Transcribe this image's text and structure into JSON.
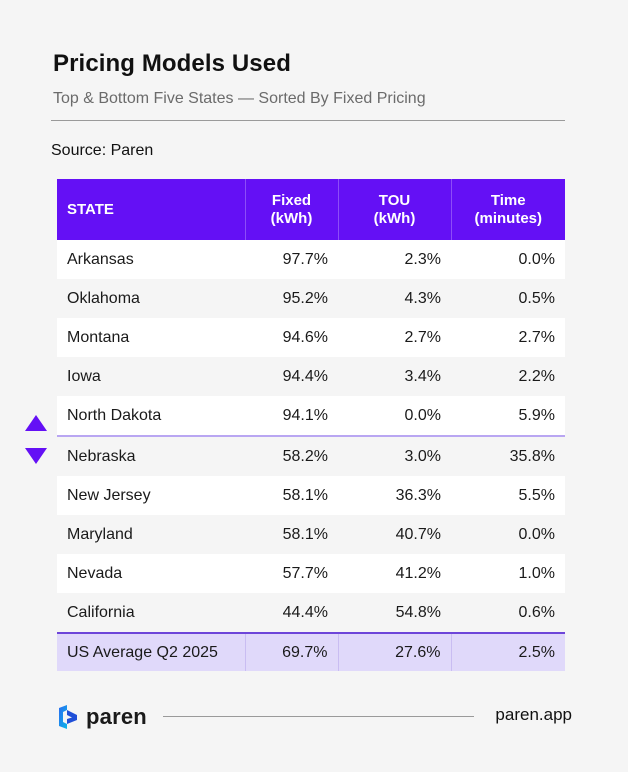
{
  "title": "Pricing Models Used",
  "subtitle": "Top & Bottom Five States — Sorted By Fixed Pricing",
  "source": "Source: Paren",
  "table": {
    "headers": {
      "state": "STATE",
      "fixed_line1": "Fixed",
      "fixed_line2": "(kWh)",
      "tou_line1": "TOU",
      "tou_line2": "(kWh)",
      "time_line1": "Time",
      "time_line2": "(minutes)"
    },
    "rows": [
      {
        "state": "Arkansas",
        "fixed": "97.7%",
        "tou": "2.3%",
        "time": "0.0%"
      },
      {
        "state": "Oklahoma",
        "fixed": "95.2%",
        "tou": "4.3%",
        "time": "0.5%"
      },
      {
        "state": "Montana",
        "fixed": "94.6%",
        "tou": "2.7%",
        "time": "2.7%"
      },
      {
        "state": "Iowa",
        "fixed": "94.4%",
        "tou": "3.4%",
        "time": "2.2%"
      },
      {
        "state": "North Dakota",
        "fixed": "94.1%",
        "tou": "0.0%",
        "time": "5.9%"
      },
      {
        "state": "Nebraska",
        "fixed": "58.2%",
        "tou": "3.0%",
        "time": "35.8%"
      },
      {
        "state": "New Jersey",
        "fixed": "58.1%",
        "tou": "36.3%",
        "time": "5.5%"
      },
      {
        "state": "Maryland",
        "fixed": "58.1%",
        "tou": "40.7%",
        "time": "0.0%"
      },
      {
        "state": "Nevada",
        "fixed": "57.7%",
        "tou": "41.2%",
        "time": "1.0%"
      },
      {
        "state": "California",
        "fixed": "44.4%",
        "tou": "54.8%",
        "time": "0.6%"
      }
    ],
    "average": {
      "state": "US Average Q2 2025",
      "fixed": "69.7%",
      "tou": "27.6%",
      "time": "2.5%"
    }
  },
  "footer": {
    "brand": "paren",
    "url": "paren.app"
  },
  "colors": {
    "header_bg": "#6410f5",
    "arrow": "#6410f5",
    "average_row_bg": "#e0d9fa",
    "page_bg": "#f5f5f5"
  },
  "icons": {
    "top_marker": "triangle-up-icon",
    "bottom_marker": "triangle-down-icon",
    "logo": "paren-logo-icon"
  },
  "chart_data": {
    "type": "table",
    "title": "Pricing Models Used",
    "subtitle": "Top & Bottom Five States — Sorted By Fixed Pricing",
    "columns": [
      "STATE",
      "Fixed (kWh)",
      "TOU (kWh)",
      "Time (minutes)"
    ],
    "rows": [
      [
        "Arkansas",
        97.7,
        2.3,
        0.0
      ],
      [
        "Oklahoma",
        95.2,
        4.3,
        0.5
      ],
      [
        "Montana",
        94.6,
        2.7,
        2.7
      ],
      [
        "Iowa",
        94.4,
        3.4,
        2.2
      ],
      [
        "North Dakota",
        94.1,
        0.0,
        5.9
      ],
      [
        "Nebraska",
        58.2,
        3.0,
        35.8
      ],
      [
        "New Jersey",
        58.1,
        36.3,
        5.5
      ],
      [
        "Maryland",
        58.1,
        40.7,
        0.0
      ],
      [
        "Nevada",
        57.7,
        41.2,
        1.0
      ],
      [
        "California",
        44.4,
        54.8,
        0.6
      ],
      [
        "US Average Q2 2025",
        69.7,
        27.6,
        2.5
      ]
    ]
  }
}
